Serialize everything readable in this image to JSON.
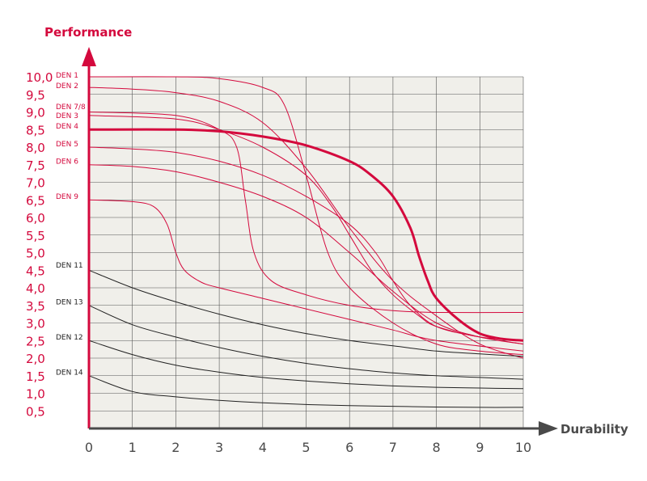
{
  "chart_data": {
    "type": "line",
    "title": "",
    "ylabel": "Performance",
    "xlabel": "Durability",
    "xlim": [
      0,
      10
    ],
    "ylim": [
      0,
      10
    ],
    "x_ticks": [
      "0",
      "1",
      "2",
      "3",
      "4",
      "5",
      "6",
      "7",
      "8",
      "9",
      "10"
    ],
    "y_ticks": [
      {
        "value": 10.0,
        "label": "10,0"
      },
      {
        "value": 9.5,
        "label": "9,5"
      },
      {
        "value": 9.0,
        "label": "9,0"
      },
      {
        "value": 8.5,
        "label": "8,5"
      },
      {
        "value": 8.0,
        "label": "8,0"
      },
      {
        "value": 7.5,
        "label": "7,5"
      },
      {
        "value": 7.0,
        "label": "7,0"
      },
      {
        "value": 6.5,
        "label": "6,5"
      },
      {
        "value": 6.0,
        "label": "6,0"
      },
      {
        "value": 5.5,
        "label": "5,5"
      },
      {
        "value": 5.0,
        "label": "5,0"
      },
      {
        "value": 4.5,
        "label": "4,5"
      },
      {
        "value": 4.0,
        "label": "4,0"
      },
      {
        "value": 3.5,
        "label": "3,5"
      },
      {
        "value": 3.0,
        "label": "3,0"
      },
      {
        "value": 2.5,
        "label": "2,5"
      },
      {
        "value": 2.0,
        "label": "2,0"
      },
      {
        "value": 1.5,
        "label": "1,5"
      },
      {
        "value": 1.0,
        "label": "1,0"
      },
      {
        "value": 0.5,
        "label": "0,5"
      }
    ],
    "grid": true,
    "series": [
      {
        "name": "DEN 1",
        "color": "#d4093d",
        "x": [
          0,
          2,
          3,
          4,
          4.5,
          5,
          5.5,
          6,
          7,
          8,
          9,
          10
        ],
        "y": [
          10.0,
          10.0,
          9.95,
          9.7,
          9.2,
          7.2,
          5.0,
          4.0,
          3.0,
          2.4,
          2.2,
          2.1
        ]
      },
      {
        "name": "DEN 2",
        "color": "#d4093d",
        "x": [
          0,
          1,
          2,
          3,
          4,
          5,
          6,
          7,
          8,
          9,
          10
        ],
        "y": [
          9.7,
          9.65,
          9.55,
          9.3,
          8.7,
          7.4,
          5.7,
          4.2,
          3.2,
          2.4,
          2.0
        ]
      },
      {
        "name": "DEN 7/8",
        "color": "#d4093d",
        "x": [
          0,
          2,
          3,
          3.4,
          3.6,
          3.8,
          4.2,
          5,
          6,
          7,
          8,
          10
        ],
        "y": [
          9.0,
          8.9,
          8.5,
          8.0,
          6.5,
          5.0,
          4.2,
          3.8,
          3.5,
          3.35,
          3.3,
          3.3
        ]
      },
      {
        "name": "DEN 3",
        "color": "#d4093d",
        "x": [
          0,
          2,
          3,
          4,
          5,
          5.6,
          6,
          6.5,
          7,
          7.6,
          8,
          9,
          10
        ],
        "y": [
          8.9,
          8.8,
          8.5,
          8.0,
          7.2,
          6.3,
          5.5,
          4.5,
          3.8,
          3.2,
          2.9,
          2.6,
          2.5
        ]
      },
      {
        "name": "DEN 4",
        "color": "#d4093d",
        "bold": true,
        "x": [
          0,
          2,
          3,
          4,
          5,
          6,
          6.5,
          7,
          7.4,
          7.6,
          7.8,
          8,
          8.5,
          9,
          9.5,
          10
        ],
        "y": [
          8.5,
          8.5,
          8.45,
          8.3,
          8.05,
          7.6,
          7.2,
          6.6,
          5.7,
          4.9,
          4.2,
          3.7,
          3.1,
          2.7,
          2.55,
          2.5
        ]
      },
      {
        "name": "DEN 5",
        "color": "#d4093d",
        "x": [
          0,
          1,
          2,
          3,
          4,
          5,
          6,
          6.6,
          7,
          7.4,
          8,
          9,
          10
        ],
        "y": [
          8.0,
          7.95,
          7.85,
          7.6,
          7.2,
          6.6,
          5.8,
          5.0,
          4.2,
          3.5,
          2.9,
          2.6,
          2.4
        ]
      },
      {
        "name": "DEN 6",
        "color": "#d4093d",
        "x": [
          0,
          1,
          2,
          3,
          4,
          5,
          6,
          7,
          8,
          9,
          10
        ],
        "y": [
          7.5,
          7.45,
          7.3,
          7.0,
          6.6,
          6.0,
          5.0,
          3.9,
          3.0,
          2.6,
          2.4
        ]
      },
      {
        "name": "DEN 9",
        "color": "#d4093d",
        "x": [
          0,
          1,
          1.5,
          1.8,
          2.0,
          2.2,
          2.6,
          3,
          4,
          5,
          6,
          7,
          8,
          10
        ],
        "y": [
          6.5,
          6.45,
          6.3,
          5.8,
          5.0,
          4.5,
          4.15,
          4.0,
          3.7,
          3.4,
          3.1,
          2.8,
          2.5,
          2.2
        ]
      },
      {
        "name": "DEN 11",
        "color": "#222222",
        "x": [
          0,
          1,
          2,
          3,
          4,
          5,
          6,
          7,
          8,
          9,
          10
        ],
        "y": [
          4.5,
          4.0,
          3.6,
          3.25,
          2.95,
          2.7,
          2.5,
          2.35,
          2.2,
          2.12,
          2.05
        ]
      },
      {
        "name": "DEN 13",
        "color": "#222222",
        "x": [
          0,
          1,
          2,
          3,
          4,
          5,
          6,
          7,
          8,
          9,
          10
        ],
        "y": [
          3.5,
          2.95,
          2.6,
          2.3,
          2.05,
          1.85,
          1.7,
          1.58,
          1.5,
          1.45,
          1.4
        ]
      },
      {
        "name": "DEN 12",
        "color": "#222222",
        "x": [
          0,
          1,
          2,
          3,
          4,
          5,
          6,
          7,
          8,
          9,
          10
        ],
        "y": [
          2.5,
          2.1,
          1.8,
          1.6,
          1.45,
          1.35,
          1.27,
          1.21,
          1.17,
          1.15,
          1.13
        ]
      },
      {
        "name": "DEN 14",
        "color": "#222222",
        "x": [
          0,
          1,
          2,
          3,
          4,
          5,
          6,
          7,
          8,
          9,
          10
        ],
        "y": [
          1.5,
          1.05,
          0.9,
          0.8,
          0.73,
          0.68,
          0.65,
          0.63,
          0.61,
          0.6,
          0.6
        ]
      }
    ],
    "series_labels": [
      {
        "text": "DEN 1",
        "y": 10.0,
        "color": "#d4093d"
      },
      {
        "text": "DEN 2",
        "y": 9.7,
        "color": "#d4093d"
      },
      {
        "text": "DEN 7/8",
        "y": 9.1,
        "color": "#d4093d"
      },
      {
        "text": "DEN 3",
        "y": 8.85,
        "color": "#d4093d"
      },
      {
        "text": "DEN 4",
        "y": 8.55,
        "color": "#d4093d"
      },
      {
        "text": "DEN 5",
        "y": 8.05,
        "color": "#d4093d"
      },
      {
        "text": "DEN 6",
        "y": 7.55,
        "color": "#d4093d"
      },
      {
        "text": "DEN 9",
        "y": 6.55,
        "color": "#d4093d"
      },
      {
        "text": "DEN 11",
        "y": 4.6,
        "color": "#222222"
      },
      {
        "text": "DEN 13",
        "y": 3.55,
        "color": "#222222"
      },
      {
        "text": "DEN 12",
        "y": 2.55,
        "color": "#222222"
      },
      {
        "text": "DEN 14",
        "y": 1.55,
        "color": "#222222"
      }
    ],
    "colors": {
      "accent": "#d4093d",
      "axis_x": "#4a4a4a",
      "plot_bg": "#f0efea",
      "grid": "#555555"
    }
  }
}
